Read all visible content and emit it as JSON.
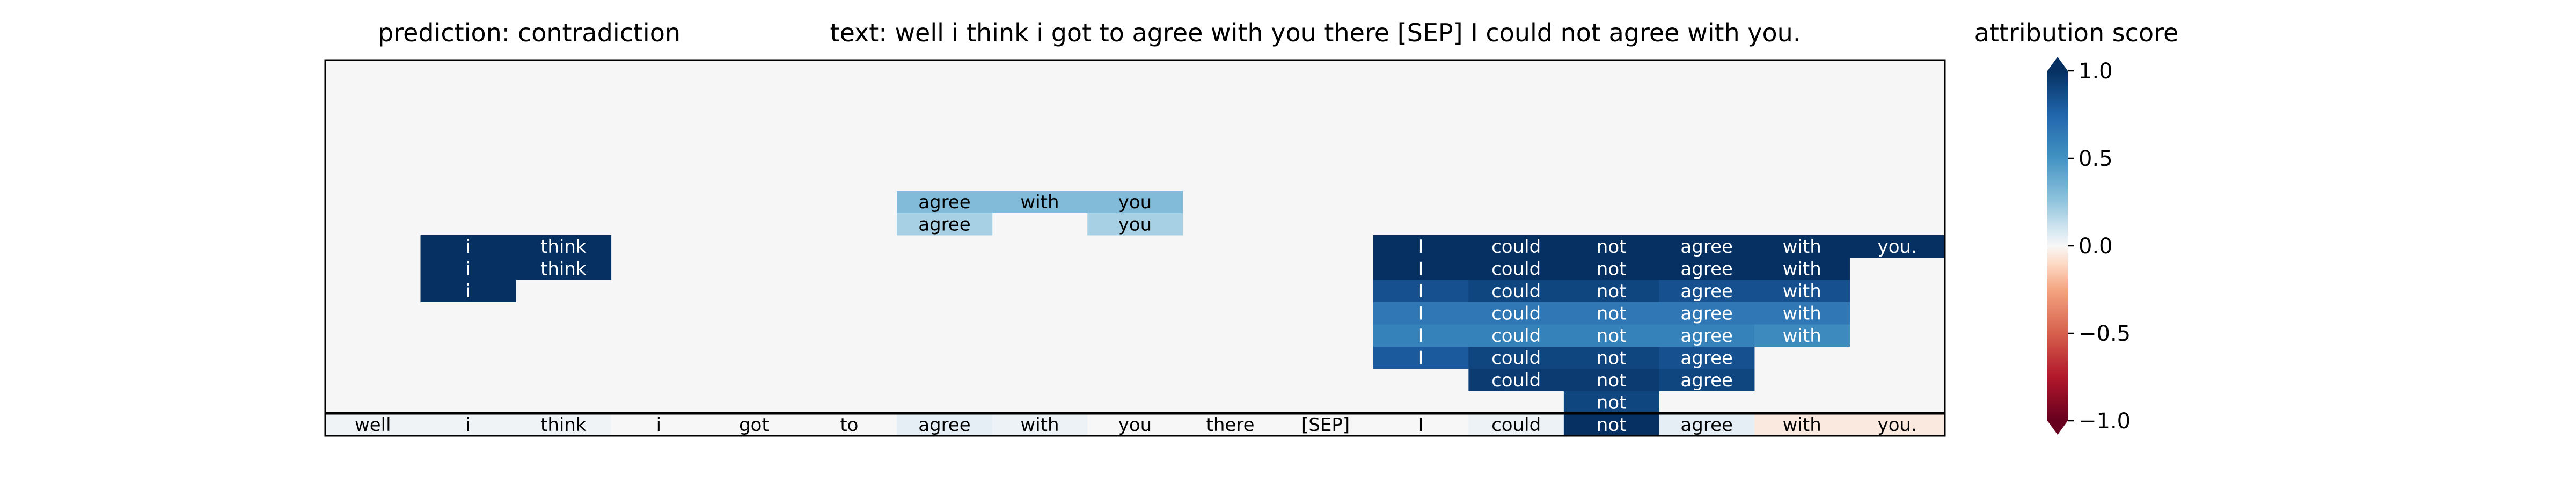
{
  "chart_data": {
    "type": "heatmap",
    "title_left": "prediction:  contradiction",
    "title_mid": "text:  well i think i got to agree with you there [SEP] I could not agree with you.",
    "colorbar": {
      "label": "attribution score",
      "vmin": -1.0,
      "vmax": 1.0,
      "ticks": [
        1.0,
        0.5,
        0.0,
        -0.5,
        -1.0
      ],
      "tick_labels": [
        "1.0",
        "0.5",
        "0.0",
        "−0.5",
        "−1.0"
      ],
      "extend": "both",
      "colormap": "RdBu"
    },
    "tokens": [
      "well",
      "i",
      "think",
      "i",
      "got",
      "to",
      "agree",
      "with",
      "you",
      "there",
      "[SEP]",
      "I",
      "could",
      "not",
      "agree",
      "with",
      "you."
    ],
    "bottom_row_scores": [
      0.02,
      0.02,
      0.02,
      0.0,
      0.0,
      0.0,
      0.05,
      0.03,
      0.0,
      0.0,
      0.0,
      0.0,
      0.03,
      1.0,
      0.05,
      -0.05,
      -0.05
    ],
    "layer_rows": [
      [
        0,
        0,
        0,
        0,
        0,
        0,
        0,
        0,
        0,
        0,
        0,
        0,
        0,
        0.9,
        0,
        0,
        0
      ],
      [
        0,
        0,
        0,
        0,
        0,
        0,
        0,
        0,
        0,
        0,
        0,
        0,
        0.95,
        0.95,
        0.9,
        0,
        0
      ],
      [
        0,
        0,
        0,
        0,
        0,
        0,
        0,
        0,
        0,
        0,
        0,
        0.8,
        0.9,
        0.9,
        0.85,
        0,
        0
      ],
      [
        0,
        0,
        0,
        0,
        0,
        0,
        0,
        0,
        0,
        0,
        0,
        0.6,
        0.6,
        0.6,
        0.6,
        0.55,
        0
      ],
      [
        0,
        0,
        0,
        0,
        0,
        0,
        0,
        0,
        0,
        0,
        0,
        0.65,
        0.65,
        0.65,
        0.65,
        0.65,
        0
      ],
      [
        0,
        1,
        0,
        0,
        0,
        0,
        0,
        0,
        0,
        0,
        0,
        0.85,
        0.9,
        0.9,
        0.85,
        0.85,
        0
      ],
      [
        0,
        1,
        1,
        0,
        0,
        0,
        0,
        0,
        0,
        0,
        0,
        1,
        1,
        1,
        1,
        1,
        0
      ],
      [
        0,
        1,
        1,
        0,
        0,
        0,
        0,
        0,
        0,
        0,
        0,
        1,
        1,
        1,
        1,
        1,
        1
      ],
      [
        0,
        0,
        0,
        0,
        0,
        0,
        0.2,
        0,
        0.2,
        0,
        0,
        0,
        0,
        0,
        0,
        0,
        0
      ],
      [
        0,
        0,
        0,
        0,
        0,
        0,
        0.3,
        0.3,
        0.3,
        0,
        0,
        0,
        0,
        0,
        0,
        0,
        0
      ]
    ]
  }
}
